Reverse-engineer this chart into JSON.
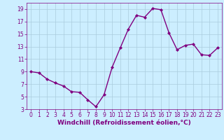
{
  "x": [
    0,
    1,
    2,
    3,
    4,
    5,
    6,
    7,
    8,
    9,
    10,
    11,
    12,
    13,
    14,
    15,
    16,
    17,
    18,
    19,
    20,
    21,
    22,
    23
  ],
  "y": [
    9,
    8.8,
    7.8,
    7.2,
    6.7,
    5.8,
    5.7,
    4.5,
    3.4,
    5.3,
    9.7,
    12.8,
    15.8,
    18.0,
    17.7,
    19.1,
    18.9,
    15.2,
    12.5,
    13.2,
    13.4,
    11.7,
    11.6,
    12.8
  ],
  "line_color": "#800080",
  "marker": "D",
  "marker_size": 2.0,
  "bg_color": "#cceeff",
  "grid_color": "#aaccdd",
  "xlabel": "Windchill (Refroidissement éolien,°C)",
  "ylim": [
    3,
    20
  ],
  "xlim": [
    -0.5,
    23.5
  ],
  "yticks": [
    3,
    5,
    7,
    9,
    11,
    13,
    15,
    17,
    19
  ],
  "xticks": [
    0,
    1,
    2,
    3,
    4,
    5,
    6,
    7,
    8,
    9,
    10,
    11,
    12,
    13,
    14,
    15,
    16,
    17,
    18,
    19,
    20,
    21,
    22,
    23
  ],
  "tick_fontsize": 5.5,
  "xlabel_fontsize": 6.5,
  "line_width": 1.0
}
